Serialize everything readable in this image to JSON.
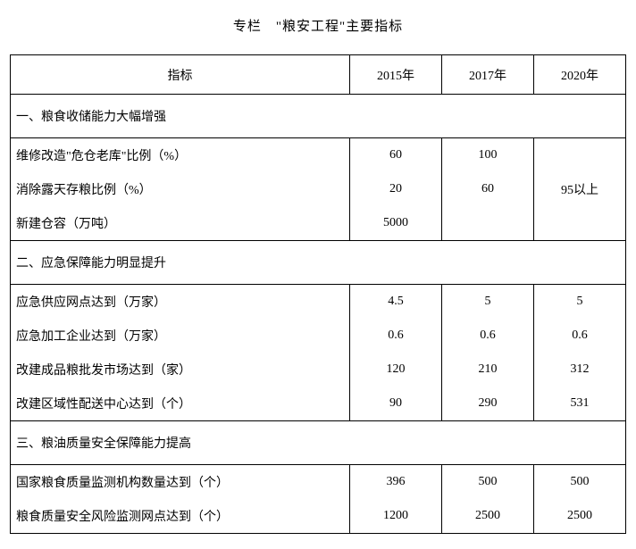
{
  "title": "专栏　\"粮安工程\"主要指标",
  "headers": {
    "indicator": "指标",
    "y2015": "2015年",
    "y2017": "2017年",
    "y2020": "2020年"
  },
  "section1": {
    "title": "一、粮食收储能力大幅增强",
    "rows": [
      {
        "label": "维修改造\"危仓老库\"比例（%）",
        "y2015": "60",
        "y2017": "100"
      },
      {
        "label": "消除露天存粮比例（%）",
        "y2015": "20",
        "y2017": "60"
      },
      {
        "label": "新建仓容（万吨）",
        "y2015": "5000",
        "y2017": ""
      }
    ],
    "y2020_merged": "95以上"
  },
  "section2": {
    "title": "二、应急保障能力明显提升",
    "rows": [
      {
        "label": "应急供应网点达到（万家）",
        "y2015": "4.5",
        "y2017": "5",
        "y2020": "5"
      },
      {
        "label": "应急加工企业达到（万家）",
        "y2015": "0.6",
        "y2017": "0.6",
        "y2020": "0.6"
      },
      {
        "label": "改建成品粮批发市场达到（家）",
        "y2015": "120",
        "y2017": "210",
        "y2020": "312"
      },
      {
        "label": "改建区域性配送中心达到（个）",
        "y2015": "90",
        "y2017": "290",
        "y2020": "531"
      }
    ]
  },
  "section3": {
    "title": "三、粮油质量安全保障能力提高",
    "rows": [
      {
        "label": "国家粮食质量监测机构数量达到（个）",
        "y2015": "396",
        "y2017": "500",
        "y2020": "500"
      },
      {
        "label": "粮食质量安全风险监测网点达到（个）",
        "y2015": "1200",
        "y2017": "2500",
        "y2020": "2500"
      }
    ]
  }
}
